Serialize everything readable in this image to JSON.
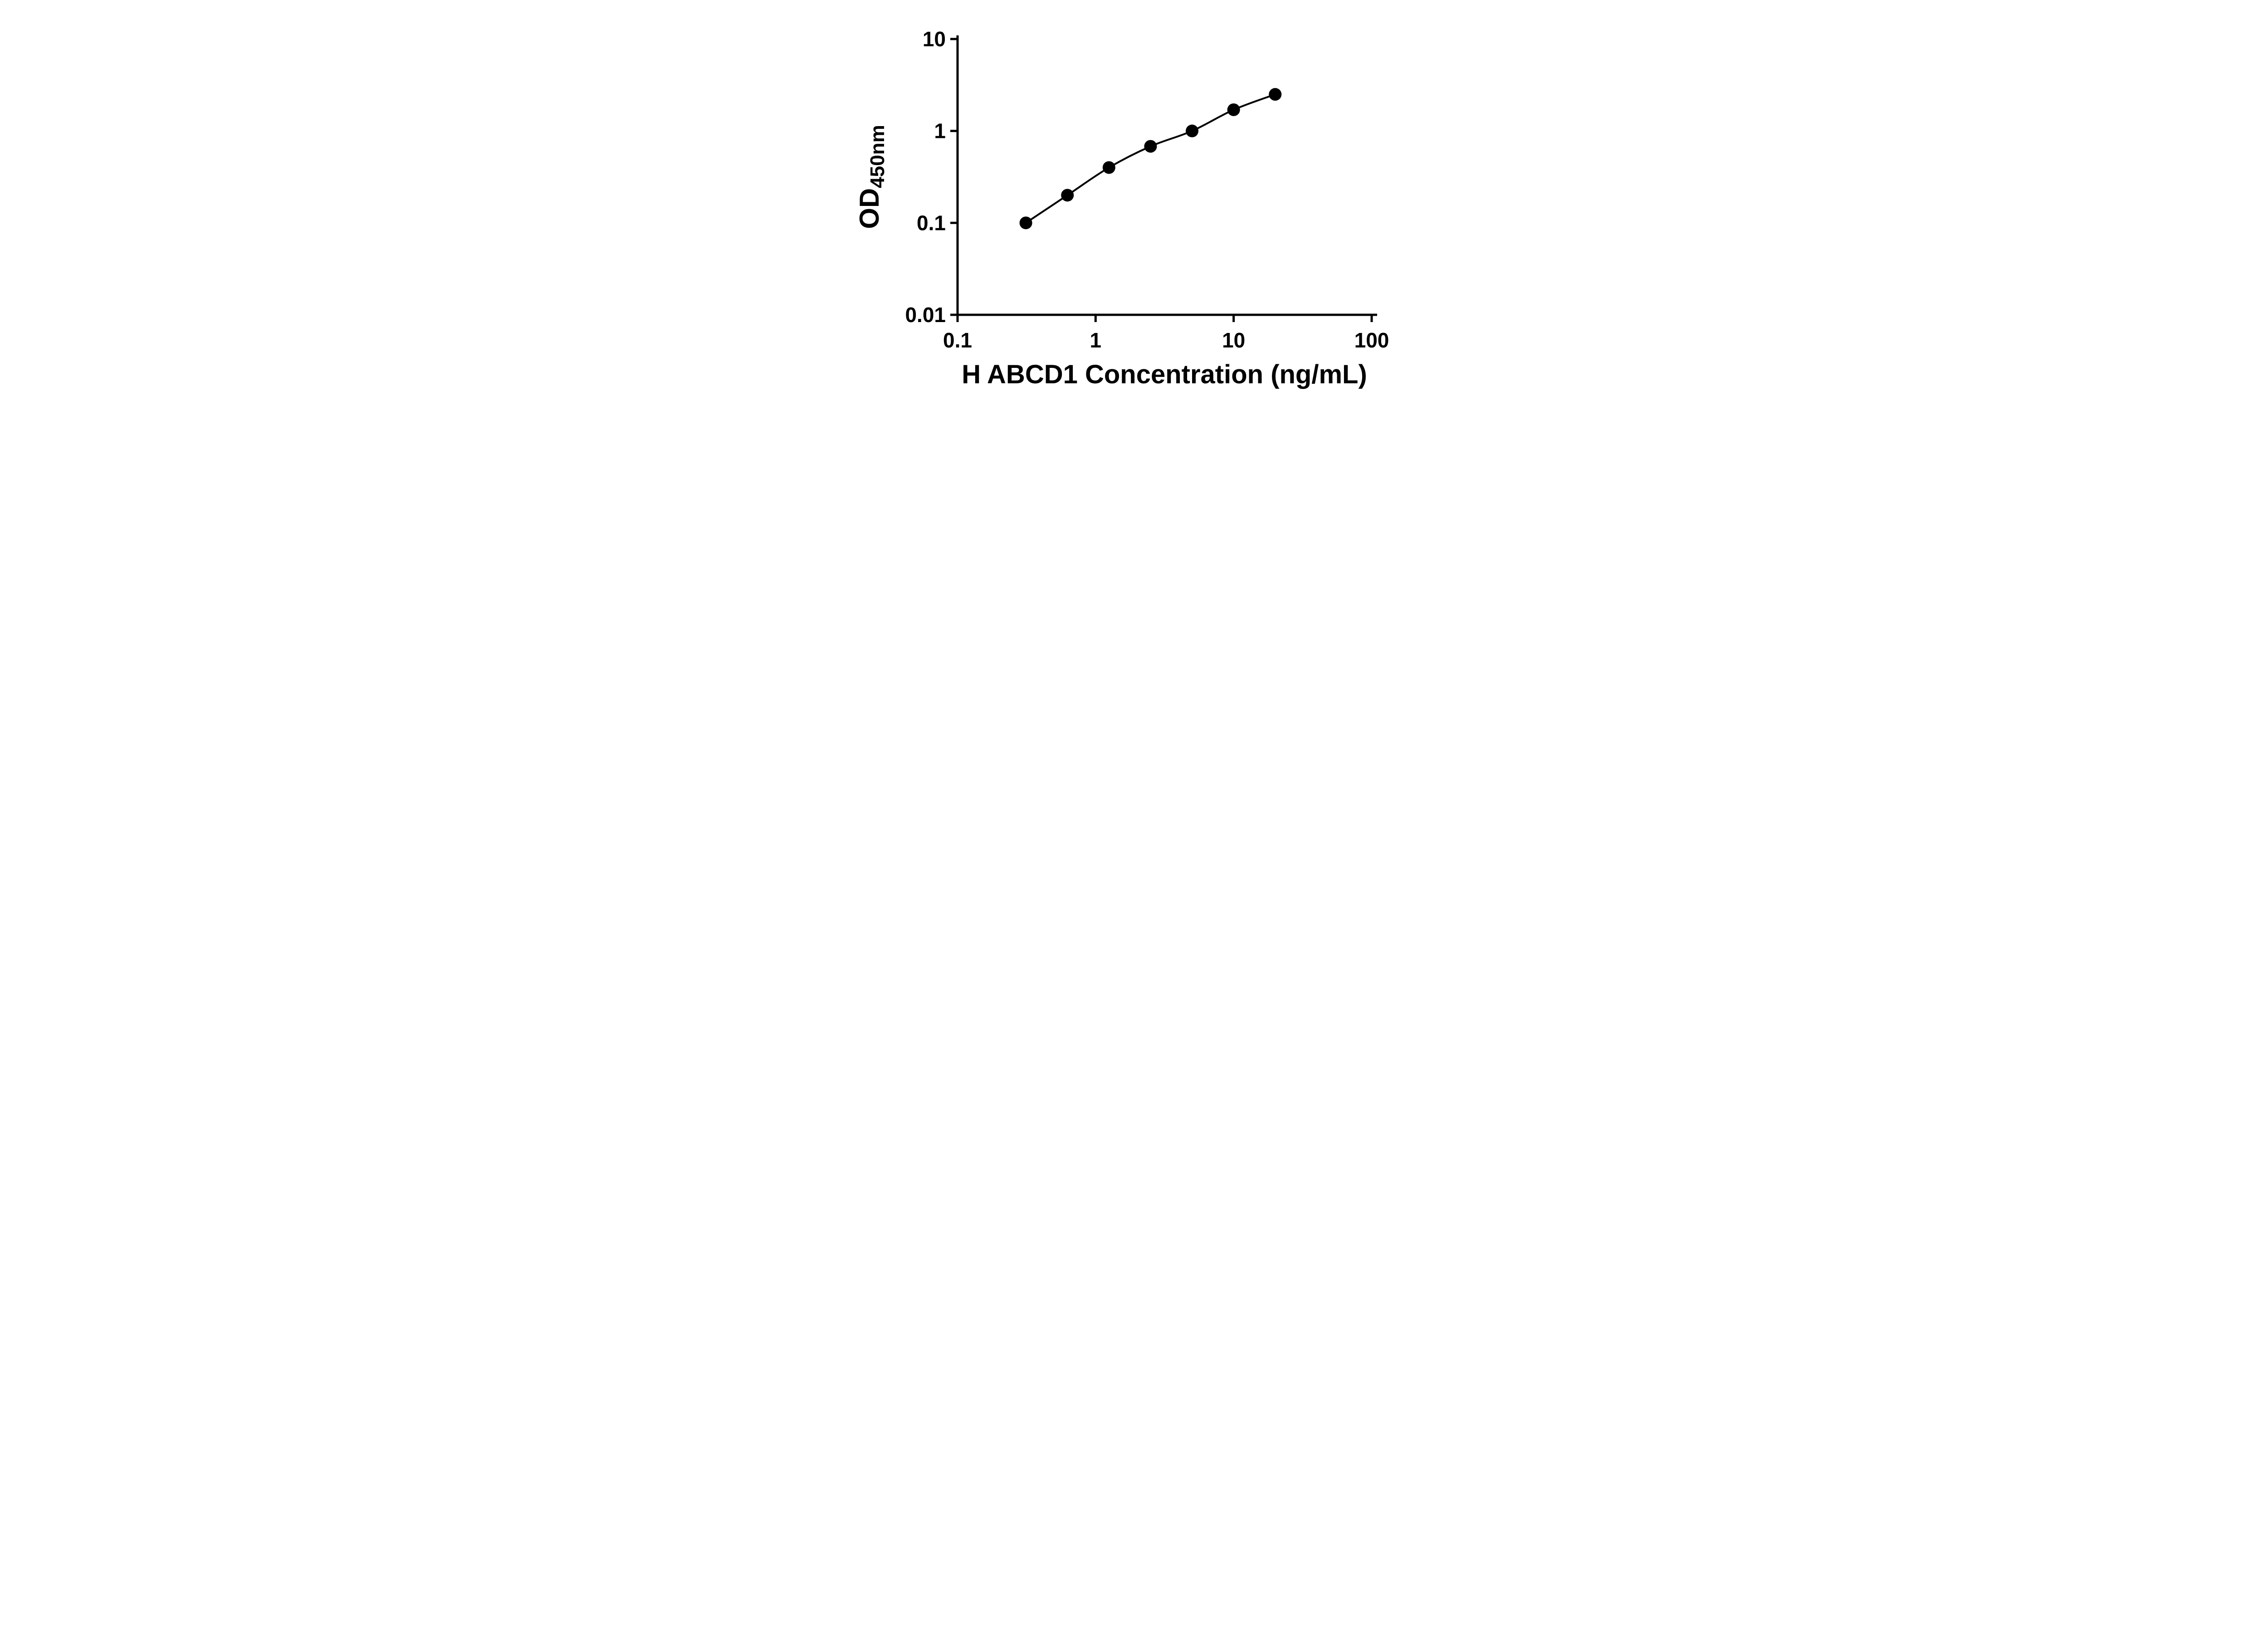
{
  "page": {
    "background": "#ffffff"
  },
  "chart_data": {
    "type": "scatter",
    "title": "",
    "xlabel": "H ABCD1 Concentration (ng/mL)",
    "ylabel": "OD450nm",
    "ylabel_main": "OD",
    "ylabel_sub": "450nm",
    "x_scale": "log",
    "y_scale": "log",
    "xlim": [
      0.1,
      100
    ],
    "ylim": [
      0.01,
      10
    ],
    "x_ticks": [
      0.1,
      1,
      10,
      100
    ],
    "x_tick_labels": [
      "0.1",
      "1",
      "10",
      "100"
    ],
    "y_ticks": [
      0.01,
      0.1,
      1,
      10
    ],
    "y_tick_labels": [
      "0.01",
      "0.1",
      "1",
      "10"
    ],
    "grid": false,
    "legend_position": "none",
    "axis_color": "#000000",
    "line_color": "#000000",
    "marker_color": "#000000",
    "marker_shape": "filled-circle",
    "series": [
      {
        "marker": "filled-circle",
        "color": "#000000",
        "points": [
          {
            "x": 0.3125,
            "y": 0.1
          },
          {
            "x": 0.625,
            "y": 0.2
          },
          {
            "x": 1.25,
            "y": 0.4
          },
          {
            "x": 2.5,
            "y": 0.68
          },
          {
            "x": 5,
            "y": 1.0
          },
          {
            "x": 10,
            "y": 1.7
          },
          {
            "x": 20,
            "y": 2.5
          }
        ]
      }
    ]
  }
}
